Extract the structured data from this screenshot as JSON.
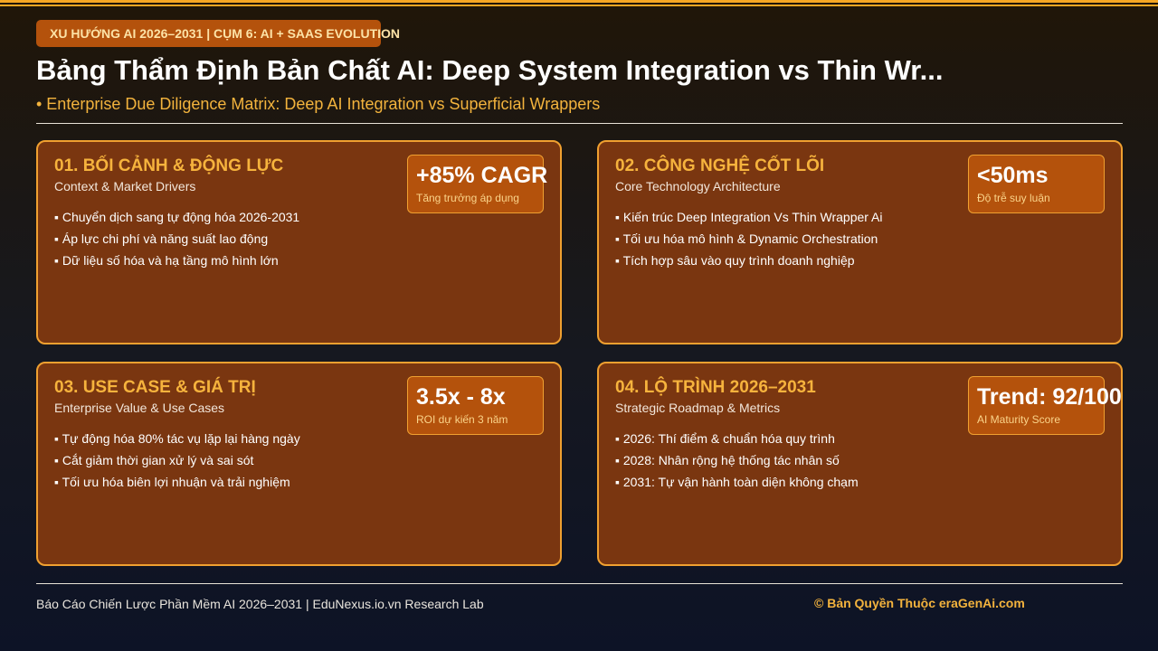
{
  "header": {
    "badge": "XU HƯỚNG AI 2026–2031 | CỤM 6: AI + SAAS EVOLUTION",
    "title": "Bảng Thẩm Định Bản Chất AI: Deep System Integration vs Thin Wr...",
    "subtitle": "• Enterprise Due Diligence Matrix: Deep AI Integration vs Superficial Wrappers"
  },
  "cards": [
    {
      "title": "01. BỐI CẢNH & ĐỘNG LỰC",
      "subtitle": "Context & Market Drivers",
      "items": [
        "Chuyển dịch sang tự động hóa 2026-2031",
        "Áp lực chi phí và năng suất lao động",
        "Dữ liệu số hóa và hạ tầng mô hình lớn"
      ],
      "metric": {
        "value": "+85% CAGR",
        "label": "Tăng trưởng áp dụng"
      }
    },
    {
      "title": "02. CÔNG NGHỆ CỐT LÕI",
      "subtitle": "Core Technology Architecture",
      "items": [
        "Kiến trúc Deep Integration Vs Thin Wrapper Ai",
        "Tối ưu hóa mô hình & Dynamic Orchestration",
        "Tích hợp sâu vào quy trình doanh nghiệp"
      ],
      "metric": {
        "value": "<50ms",
        "label": "Độ trễ suy luận"
      }
    },
    {
      "title": "03. USE CASE & GIÁ TRỊ",
      "subtitle": "Enterprise Value & Use Cases",
      "items": [
        "Tự động hóa 80% tác vụ lặp lại hàng ngày",
        "Cắt giảm thời gian xử lý và sai sót",
        "Tối ưu hóa biên lợi nhuận và trải nghiệm"
      ],
      "metric": {
        "value": "3.5x - 8x",
        "label": "ROI dự kiến 3 năm"
      }
    },
    {
      "title": "04. LỘ TRÌNH 2026–2031",
      "subtitle": "Strategic Roadmap & Metrics",
      "items": [
        "2026: Thí điểm & chuẩn hóa quy trình",
        "2028: Nhân rộng hệ thống tác nhân số",
        "2031: Tự vận hành toàn diện không chạm"
      ],
      "metric": {
        "value": "Trend: 92/100",
        "label": "AI Maturity Score"
      }
    }
  ],
  "footer": {
    "left": "Báo Cáo Chiến Lược Phần Mềm AI 2026–2031 | EduNexus.io.vn Research Lab",
    "right": "© Bản Quyền Thuộc eraGenAi.com"
  },
  "colors": {
    "accent": "#f5a623",
    "card_bg": "#7a3610",
    "metric_bg": "#b4520c",
    "heading": "#f6b33d"
  }
}
